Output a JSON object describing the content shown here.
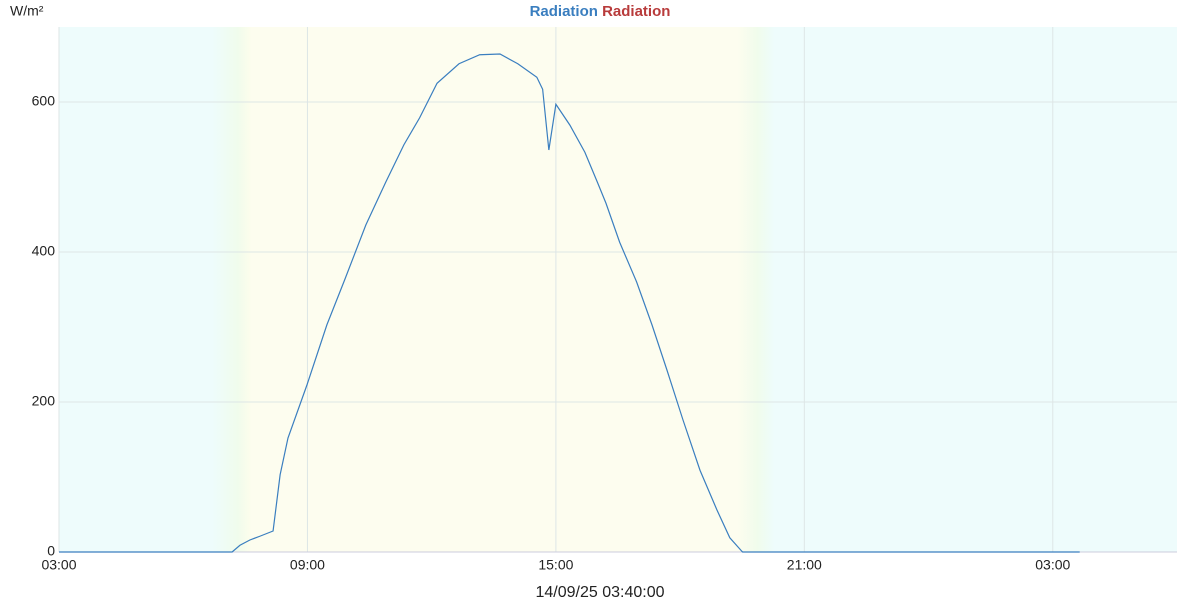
{
  "chart_data": {
    "type": "line",
    "legend": [
      {
        "name": "Radiation",
        "color": "#3a7ebf"
      },
      {
        "name": "Radiation",
        "color": "#b83b3b"
      }
    ],
    "y_label": "W/m²",
    "x_label": "14/09/25 03:40:00",
    "line_color": "#3a7ebf",
    "x": [
      0,
      4.18,
      4.37,
      4.61,
      4.85,
      5.17,
      5.34,
      5.53,
      5.99,
      6.47,
      6.9,
      7.41,
      7.89,
      8.33,
      8.71,
      9.13,
      9.66,
      10.16,
      10.65,
      11.08,
      11.54,
      11.68,
      11.83,
      12.0,
      12.34,
      12.7,
      13.01,
      13.21,
      13.54,
      13.95,
      14.32,
      14.68,
      15.07,
      15.48,
      15.89,
      16.2,
      16.49,
      16.51,
      24.65
    ],
    "values": [
      0,
      0,
      9,
      16,
      21,
      28,
      103,
      152,
      223,
      303,
      363,
      436,
      493,
      543,
      579,
      625,
      651,
      663,
      664,
      651,
      633,
      617,
      536,
      597,
      569,
      533,
      492,
      465,
      413,
      360,
      303,
      243,
      176,
      109,
      56,
      19,
      1,
      0,
      0
    ],
    "xlim": [
      0,
      27
    ],
    "xticks": [
      {
        "value": 0,
        "label": "03:00"
      },
      {
        "value": 6,
        "label": "09:00"
      },
      {
        "value": 12,
        "label": "15:00"
      },
      {
        "value": 18,
        "label": "21:00"
      },
      {
        "value": 24,
        "label": "03:00"
      }
    ],
    "ylim": [
      0,
      700
    ],
    "yticks": [
      0,
      200,
      400,
      600
    ],
    "grid": true
  }
}
